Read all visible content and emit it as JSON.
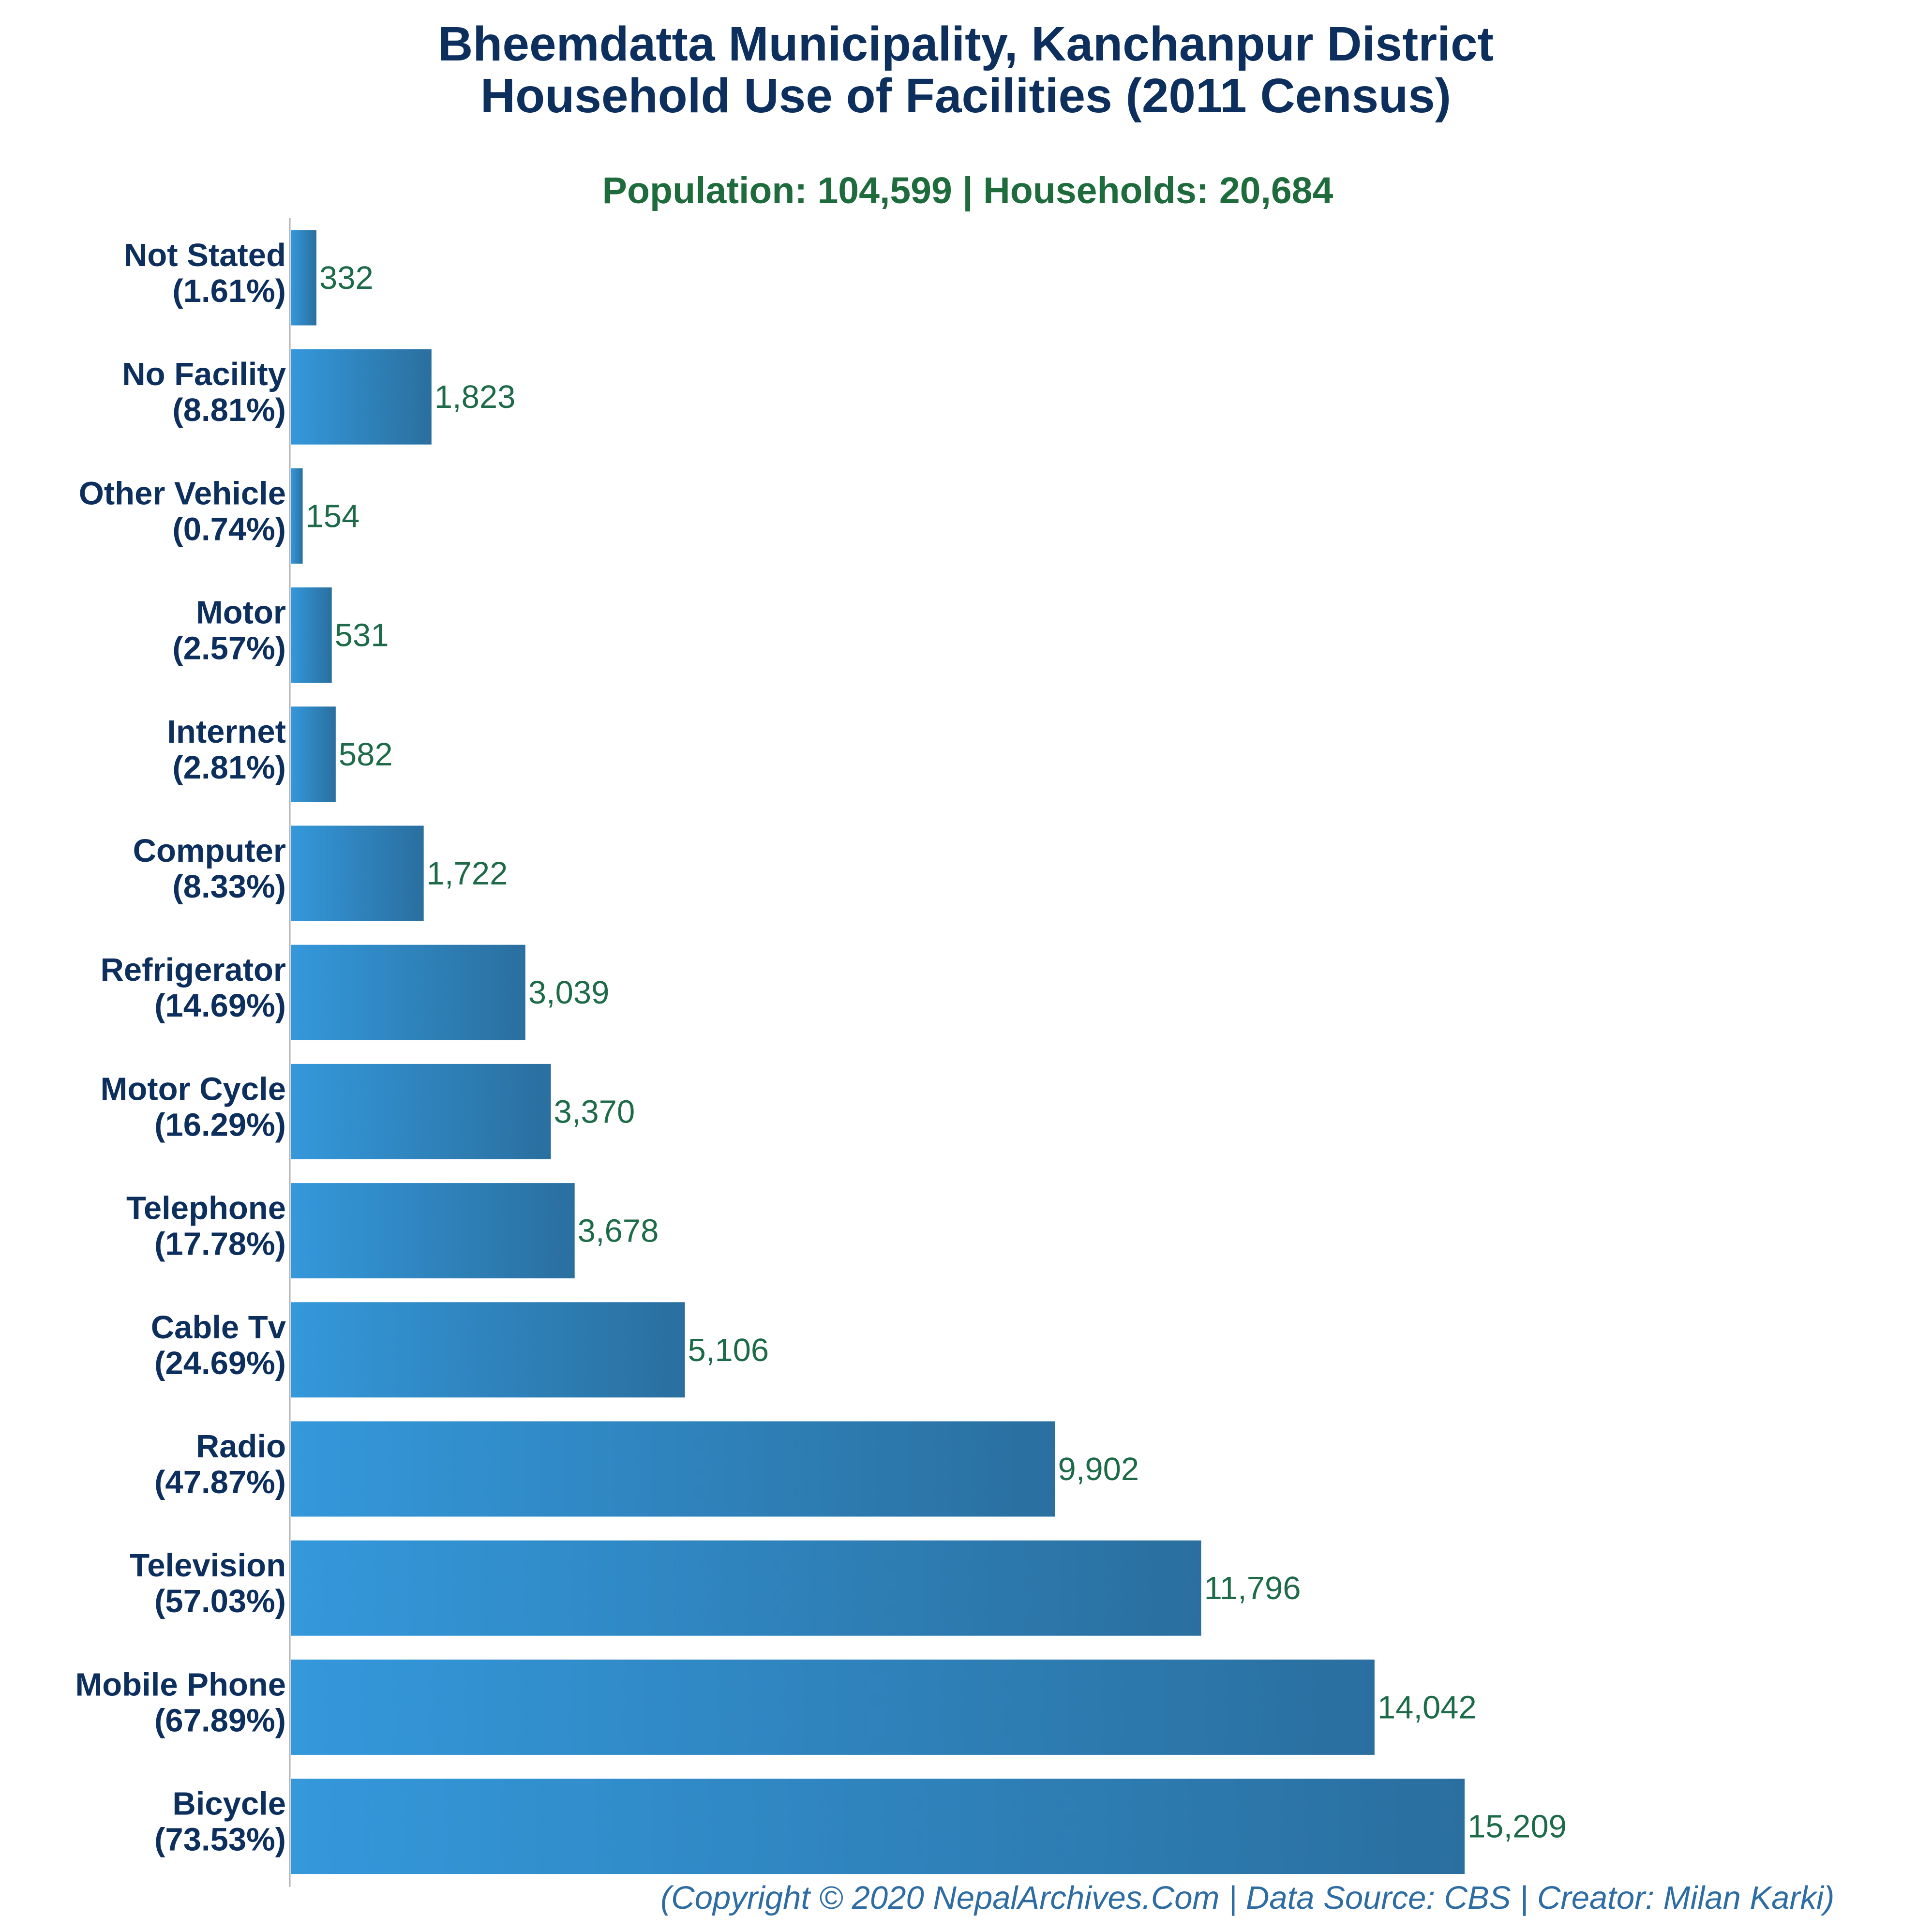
{
  "chart_data": {
    "type": "bar",
    "orientation": "horizontal",
    "title_line1": "Bheemdatta Municipality, Kanchanpur District",
    "title_line2": "Household Use of Facilities (2011 Census)",
    "subtitle": "Population: 104,599 | Households: 20,684",
    "categories": [
      "Not Stated",
      "No Facility",
      "Other Vehicle",
      "Motor",
      "Internet",
      "Computer",
      "Refrigerator",
      "Motor Cycle",
      "Telephone",
      "Cable Tv",
      "Radio",
      "Television",
      "Mobile Phone",
      "Bicycle"
    ],
    "percent_labels": [
      "(1.61%)",
      "(8.81%)",
      "(0.74%)",
      "(2.57%)",
      "(2.81%)",
      "(8.33%)",
      "(14.69%)",
      "(16.29%)",
      "(17.78%)",
      "(24.69%)",
      "(47.87%)",
      "(57.03%)",
      "(67.89%)",
      "(73.53%)"
    ],
    "values": [
      332,
      1823,
      154,
      531,
      582,
      1722,
      3039,
      3370,
      3678,
      5106,
      9902,
      11796,
      14042,
      15209
    ],
    "value_labels": [
      "332",
      "1,823",
      "154",
      "531",
      "582",
      "1,722",
      "3,039",
      "3,370",
      "3,678",
      "5,106",
      "9,902",
      "11,796",
      "14,042",
      "15,209"
    ],
    "xlim": [
      0,
      15209
    ],
    "grid": false,
    "legend": "none",
    "bar_color_start": "#3498db",
    "bar_color_end": "#2a6f9f",
    "credit": "(Copyright © 2020 NepalArchives.Com | Data Source: CBS | Creator: Milan Karki)"
  }
}
